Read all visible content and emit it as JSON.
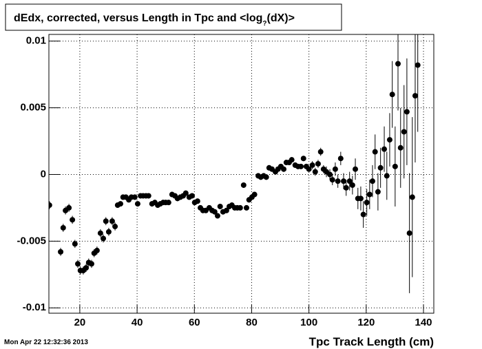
{
  "chart_data": {
    "type": "scatter",
    "title": [
      "dEdx, corrected,  versus Length in Tpc and <log",
      "?",
      "(dX)>"
    ],
    "xlabel": "Tpc Track Length (cm)",
    "timestamp": "Mon Apr 22 12:32:36 2013",
    "color": "#000000",
    "grid": true,
    "xlim": [
      9.2,
      143.6
    ],
    "ylim": [
      -0.0104,
      0.0105
    ],
    "xticks": [
      20,
      40,
      60,
      80,
      100,
      120,
      140
    ],
    "yticks": [
      0.01,
      0.005,
      0,
      -0.005,
      -0.01
    ],
    "x": [
      9.4,
      13.3,
      14.2,
      15,
      16.2,
      17.4,
      18.3,
      19.3,
      20.2,
      21.2,
      22.2,
      23.1,
      24.1,
      25,
      26,
      27.2,
      28.2,
      29.1,
      30.1,
      31.3,
      32.3,
      33.2,
      34.2,
      35.1,
      36.1,
      37.1,
      38,
      39.2,
      40.2,
      41.2,
      42.1,
      43.1,
      44,
      45.2,
      46.2,
      47.2,
      48.1,
      49.1,
      50,
      51,
      52.2,
      53.2,
      54.1,
      55.1,
      56.1,
      57,
      58.2,
      59.2,
      60.1,
      61.1,
      62.1,
      63,
      64,
      65.2,
      66.2,
      67.1,
      68.1,
      69,
      70,
      71.2,
      72.2,
      73.1,
      74.1,
      75,
      76,
      77.2,
      78.2,
      79.1,
      80.1,
      81,
      82.3,
      83.2,
      84.2,
      85.1,
      86.1,
      87.1,
      88.3,
      89.2,
      90.2,
      91.2,
      92.1,
      93.1,
      94,
      95.2,
      96.2,
      97.2,
      98.1,
      99.1,
      100,
      101.2,
      102.2,
      103.2,
      104.1,
      105.1,
      106.1,
      107.3,
      108.2,
      109.2,
      110.1,
      111.1,
      112.1,
      113,
      114.2,
      115.2,
      116.2,
      117.1,
      118.1,
      119,
      120.2,
      121.2,
      122.2,
      123.1,
      124.1,
      125,
      126.3,
      127.2,
      128.2,
      129.1,
      130.1,
      131.1,
      132,
      133.2,
      134.2,
      135.1,
      136.1,
      137.1,
      138
    ],
    "values": [
      -0.0023,
      -0.0058,
      -0.004,
      -0.0027,
      -0.0025,
      -0.0034,
      -0.0052,
      -0.0067,
      -0.0072,
      -0.0072,
      -0.007,
      -0.0066,
      -0.0067,
      -0.0059,
      -0.0057,
      -0.0044,
      -0.0048,
      -0.0035,
      -0.0043,
      -0.0035,
      -0.0039,
      -0.0023,
      -0.0022,
      -0.0017,
      -0.0017,
      -0.0019,
      -0.0017,
      -0.0017,
      -0.0022,
      -0.0016,
      -0.0016,
      -0.0016,
      -0.0016,
      -0.0022,
      -0.0021,
      -0.0023,
      -0.0022,
      -0.0021,
      -0.0021,
      -0.0021,
      -0.0015,
      -0.0016,
      -0.0018,
      -0.0017,
      -0.0016,
      -0.0014,
      -0.0017,
      -0.0016,
      -0.0021,
      -0.002,
      -0.0025,
      -0.0027,
      -0.0027,
      -0.0025,
      -0.0027,
      -0.0028,
      -0.0031,
      -0.0024,
      -0.0028,
      -0.0027,
      -0.0024,
      -0.0023,
      -0.0025,
      -0.0025,
      -0.0025,
      -0.0008,
      -0.0025,
      -0.0019,
      -0.0017,
      -0.0015,
      -0.0001,
      -0.0002,
      -0.0001,
      -0.0002,
      0.0005,
      0.0004,
      0.0002,
      0.0004,
      0.0006,
      0.0004,
      0.0009,
      0.0009,
      0.0011,
      0.0007,
      0.0006,
      0.0006,
      0.0012,
      0.0006,
      0.0004,
      0.0007,
      0.0002,
      0.0008,
      0.0017,
      0.0004,
      0.0002,
      0,
      -0.0004,
      0.0004,
      -0.0005,
      0.0012,
      -0.0005,
      -0.001,
      -0.0005,
      -0.0008,
      0.0004,
      -0.0018,
      -0.0018,
      -0.003,
      -0.0021,
      -0.0015,
      -0.0005,
      0.0017,
      -0.0013,
      0.0005,
      0.0019,
      -0.0001,
      0.0026,
      0.006,
      0.0006,
      0.0083,
      0.002,
      0.0032,
      0.0047,
      -0.0044,
      -0.0017,
      0.0059,
      0.0082
    ],
    "errors": [
      0.0003,
      0.0003,
      0.0003,
      0.0003,
      0.0003,
      0.0003,
      0.0003,
      0.0003,
      0.0003,
      0.0003,
      0.0003,
      0.0003,
      0.0003,
      0.0003,
      0.0003,
      0.0003,
      0.0003,
      0.0003,
      0.0003,
      0.0003,
      0.0003,
      0.0002,
      0.0002,
      0.0002,
      0.0002,
      0.0002,
      0.0002,
      0.0002,
      0.0002,
      0.0002,
      0.0002,
      0.0002,
      0.0002,
      0.0002,
      0.0002,
      0.0002,
      0.0002,
      0.0002,
      0.0002,
      0.0002,
      0.0002,
      0.0002,
      0.0002,
      0.0002,
      0.0002,
      0.0002,
      0.0002,
      0.0002,
      0.0002,
      0.0002,
      0.0002,
      0.0002,
      0.0002,
      0.0002,
      0.0002,
      0.0002,
      0.0002,
      0.0002,
      0.0002,
      0.0002,
      0.0002,
      0.0002,
      0.0002,
      0.0002,
      0.0002,
      0.0002,
      0.0002,
      0.0002,
      0.0002,
      0.0002,
      0.0002,
      0.0002,
      0.0002,
      0.0002,
      0.0002,
      0.0002,
      0.0002,
      0.0002,
      0.0002,
      0.0002,
      0.0002,
      0.0002,
      0.0002,
      0.0002,
      0.0002,
      0.0002,
      0.0002,
      0.0002,
      0.0002,
      0.0003,
      0.0003,
      0.0003,
      0.0003,
      0.0003,
      0.0004,
      0.0004,
      0.0004,
      0.0005,
      0.0005,
      0.0005,
      0.0006,
      0.0006,
      0.0007,
      0.0007,
      0.0008,
      0.0008,
      0.0009,
      0.001,
      0.001,
      0.0011,
      0.0012,
      0.0013,
      0.0014,
      0.0015,
      0.0017,
      0.0018,
      0.002,
      0.0025,
      0.003,
      0.0035,
      0.003,
      0.0035,
      0.004,
      0.0045,
      0.006,
      0.005,
      0.005
    ]
  }
}
